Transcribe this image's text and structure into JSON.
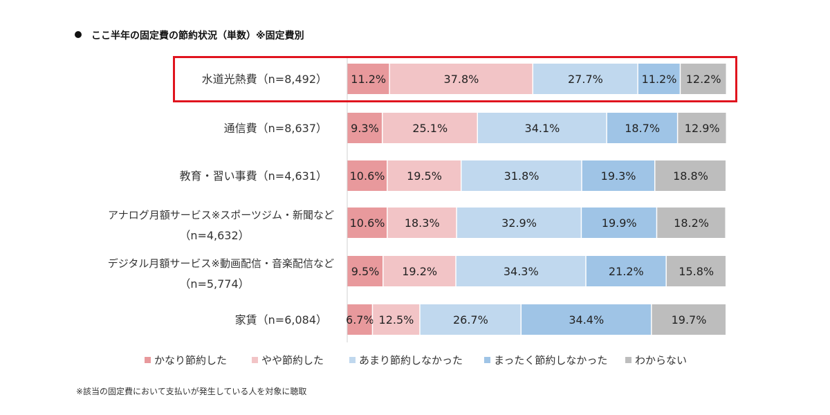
{
  "title": "ここ半年の固定費の節約状況（単数）※固定費別",
  "footnote": "※該当の固定費において支払いが発生している人を対象に聴取",
  "chart_data": {
    "type": "bar",
    "orientation": "horizontal",
    "stacked": true,
    "percent": true,
    "title": "ここ半年の固定費の節約状況（単数）※固定費別",
    "xlabel": "",
    "ylabel": "",
    "xlim": [
      0,
      100
    ],
    "grid": false,
    "legend_position": "bottom",
    "highlighted_category": 0,
    "categories": [
      [
        "水道光熱費（n=8,492）"
      ],
      [
        "通信費（n=8,637）"
      ],
      [
        "教育・習い事費（n=4,631）"
      ],
      [
        "アナログ月額サービス※スポーツジム・新聞など",
        "（n=4,632）"
      ],
      [
        "デジタル月額サービス※動画配信・音楽配信など",
        "（n=5,774）"
      ],
      [
        "家賃（n=6,084）"
      ]
    ],
    "series": [
      {
        "name": "かなり節約した",
        "color": "#e8999c",
        "values": [
          11.2,
          9.3,
          10.6,
          10.6,
          9.5,
          6.7
        ]
      },
      {
        "name": "やや節約した",
        "color": "#f2c4c6",
        "values": [
          37.8,
          25.1,
          19.5,
          18.3,
          19.2,
          12.5
        ]
      },
      {
        "name": "あまり節約しなかった",
        "color": "#c0d8ee",
        "values": [
          27.7,
          34.1,
          31.8,
          32.9,
          34.3,
          26.7
        ]
      },
      {
        "name": "まったく節約しなかった",
        "color": "#9fc4e6",
        "values": [
          11.2,
          18.7,
          19.3,
          19.9,
          21.2,
          34.4
        ]
      },
      {
        "name": "わからない",
        "color": "#bdbdbd",
        "values": [
          12.2,
          12.9,
          18.8,
          18.2,
          15.8,
          19.7
        ]
      }
    ]
  }
}
